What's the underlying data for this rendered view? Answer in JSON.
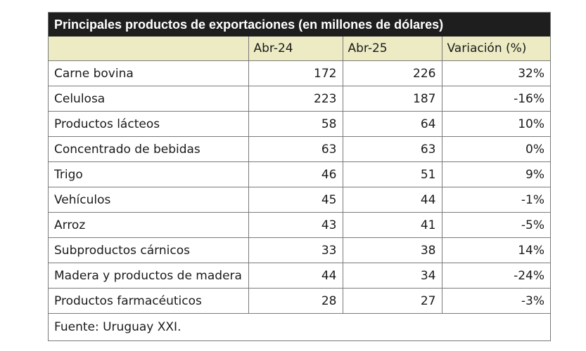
{
  "title": "Principales productos de exportaciones (en millones de dólares)",
  "columns": [
    "",
    "Abr-24",
    "Abr-25",
    "Variación (%)"
  ],
  "rows": [
    {
      "product": "Carne bovina",
      "abr24": "172",
      "abr25": "226",
      "variation": "32%"
    },
    {
      "product": "Celulosa",
      "abr24": "223",
      "abr25": "187",
      "variation": "-16%"
    },
    {
      "product": "Productos lácteos",
      "abr24": "58",
      "abr25": "64",
      "variation": "10%"
    },
    {
      "product": "Concentrado de bebidas",
      "abr24": "63",
      "abr25": "63",
      "variation": "0%"
    },
    {
      "product": "Trigo",
      "abr24": "46",
      "abr25": "51",
      "variation": "9%"
    },
    {
      "product": "Vehículos",
      "abr24": "45",
      "abr25": "44",
      "variation": "-1%"
    },
    {
      "product": "Arroz",
      "abr24": "43",
      "abr25": "41",
      "variation": "-5%"
    },
    {
      "product": "Subproductos cárnicos",
      "abr24": "33",
      "abr25": "38",
      "variation": "14%"
    },
    {
      "product": "Madera y productos de madera",
      "abr24": "44",
      "abr25": "34",
      "variation": "-24%"
    },
    {
      "product": "Productos farmacéuticos",
      "abr24": "28",
      "abr25": "27",
      "variation": "-3%"
    }
  ],
  "source": "Fuente: Uruguay XXI.",
  "colors": {
    "title_bg": "#1e1e1e",
    "title_text": "#ffffff",
    "header_bg": "#ecebc4",
    "border": "#7a7a7a"
  }
}
